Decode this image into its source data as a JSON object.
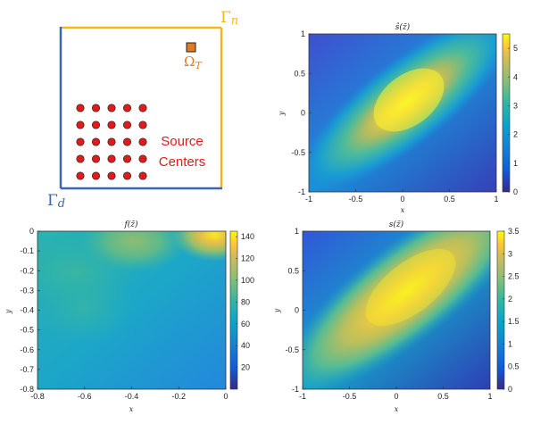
{
  "diagram": {
    "gamma_n": "Γ",
    "gamma_n_sub": "n",
    "gamma_d": "Γ",
    "gamma_d_sub": "d",
    "omega": "Ω",
    "omega_sub": "T",
    "source_line1": "Source",
    "source_line2": "Centers",
    "colors": {
      "neumann": "#f2b81a",
      "dirichlet": "#3b66b0",
      "target": "#e07b22",
      "source": "#e31a1c",
      "text_red": "#e31a1c"
    },
    "source_grid": {
      "rows": 5,
      "cols": 5
    }
  },
  "chart_data": [
    {
      "type": "heatmap",
      "id": "s_hat",
      "title": "ŝ(z̃)",
      "xlabel": "x",
      "ylabel": "y",
      "xlim": [
        -1,
        1
      ],
      "ylim": [
        -1,
        1
      ],
      "xticks": [
        "-1",
        "-0.5",
        "0",
        "0.5",
        "1"
      ],
      "yticks": [
        "1",
        "0.5",
        "0",
        "-0.5",
        "-1"
      ],
      "colorbar": {
        "min": 0,
        "max": 5.5,
        "ticks": [
          "5",
          "4",
          "3",
          "2",
          "1",
          "0"
        ]
      },
      "peak": {
        "x": 0.1,
        "y": 0.12,
        "value": 5.4
      }
    },
    {
      "type": "heatmap",
      "id": "f",
      "title": "f(z̃)",
      "xlabel": "x",
      "ylabel": "y",
      "xlim": [
        -0.8,
        0
      ],
      "ylim": [
        -0.8,
        0
      ],
      "xticks": [
        "-0.8",
        "-0.6",
        "-0.4",
        "-0.2",
        "0"
      ],
      "yticks": [
        "0",
        "-0.1",
        "-0.2",
        "-0.3",
        "-0.4",
        "-0.5",
        "-0.6",
        "-0.7",
        "-0.8"
      ],
      "colorbar": {
        "min": 0,
        "max": 145,
        "ticks": [
          "140",
          "120",
          "100",
          "80",
          "60",
          "40",
          "20"
        ]
      },
      "peak": {
        "x": -0.03,
        "y": 0,
        "value": 145
      }
    },
    {
      "type": "heatmap",
      "id": "s",
      "title": "s(z̃)",
      "xlabel": "x",
      "ylabel": "y",
      "xlim": [
        -1,
        1
      ],
      "ylim": [
        -1,
        1
      ],
      "xticks": [
        "-1",
        "-0.5",
        "0",
        "0.5",
        "1"
      ],
      "yticks": [
        "1",
        "0.5",
        "0",
        "-0.5",
        "-1"
      ],
      "colorbar": {
        "min": 0,
        "max": 3.5,
        "ticks": [
          "3.5",
          "3",
          "2.5",
          "2",
          "1.5",
          "1",
          "0.5",
          "0"
        ]
      },
      "peak": {
        "x": 0.15,
        "y": 0.2,
        "value": 3.5
      }
    }
  ]
}
